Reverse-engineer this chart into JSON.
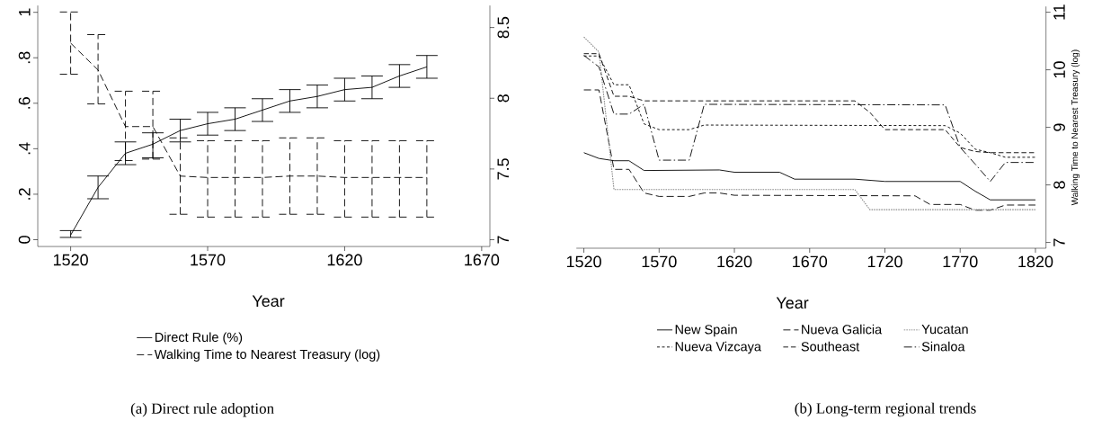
{
  "chart_data": [
    {
      "type": "line",
      "title": "(a) Direct rule adoption",
      "xlabel": "Year",
      "legend": "bottom",
      "x": [
        1520,
        1530,
        1540,
        1550,
        1560,
        1570,
        1580,
        1590,
        1600,
        1610,
        1620,
        1630,
        1640,
        1650
      ],
      "xlim": [
        1508,
        1673
      ],
      "xticks": [
        1520,
        1570,
        1620,
        1670
      ],
      "ylim": [
        -0.03,
        1.03
      ],
      "yticks": [
        0,
        {
          "value": 0.2,
          "label": ".2"
        },
        {
          "value": 0.4,
          "label": ".4"
        },
        {
          "value": 0.6,
          "label": ".6"
        },
        {
          "value": 0.8,
          "label": ".8"
        },
        1
      ],
      "y2lim": [
        6.952,
        8.656
      ],
      "y2ticks": [
        7,
        7.5,
        8,
        8.5
      ],
      "series": [
        {
          "name": "Direct Rule (%)",
          "color": "#000000",
          "line_style": "solid",
          "values": [
            0.02,
            0.23,
            0.38,
            0.42,
            0.48,
            0.51,
            0.53,
            0.57,
            0.61,
            0.63,
            0.66,
            0.67,
            0.72,
            0.76
          ],
          "errors": [
            [
              0.01,
              0.04
            ],
            [
              0.18,
              0.28
            ],
            [
              0.33,
              0.43
            ],
            [
              0.36,
              0.47
            ],
            [
              0.43,
              0.53
            ],
            [
              0.46,
              0.56
            ],
            [
              0.48,
              0.58
            ],
            [
              0.52,
              0.62
            ],
            [
              0.56,
              0.66
            ],
            [
              0.58,
              0.68
            ],
            [
              0.61,
              0.71
            ],
            [
              0.62,
              0.72
            ],
            [
              0.67,
              0.77
            ],
            [
              0.71,
              0.81
            ]
          ]
        },
        {
          "name": "Walking Time to Nearest Treasury (log)",
          "color": "#000000",
          "line_style": "dashed",
          "axis": "y2",
          "values": [
            8.39,
            8.2,
            7.8,
            7.8,
            7.45,
            7.44,
            7.44,
            7.44,
            7.45,
            7.45,
            7.44,
            7.44,
            7.44,
            7.44
          ],
          "errors": [
            [
              8.17,
              8.61
            ],
            [
              7.96,
              8.45
            ],
            [
              7.56,
              8.05
            ],
            [
              7.57,
              8.05
            ],
            [
              7.18,
              7.72
            ],
            [
              7.16,
              7.7
            ],
            [
              7.16,
              7.7
            ],
            [
              7.16,
              7.7
            ],
            [
              7.18,
              7.72
            ],
            [
              7.18,
              7.72
            ],
            [
              7.16,
              7.7
            ],
            [
              7.16,
              7.7
            ],
            [
              7.16,
              7.7
            ],
            [
              7.16,
              7.7
            ]
          ]
        }
      ]
    },
    {
      "type": "line",
      "title": "(b) Long-term regional trends",
      "xlabel": "Year",
      "ylabel": "Walking Time to Nearest Treasury (log)",
      "legend": "bottom",
      "xlim": [
        1515,
        1827
      ],
      "xticks": [
        1520,
        1570,
        1620,
        1670,
        1720,
        1770,
        1820
      ],
      "ylim": [
        6.9,
        11.1
      ],
      "yticks": [
        7,
        8,
        9,
        10,
        11
      ],
      "series": [
        {
          "name": "New Spain",
          "color": "#000000",
          "line_style": "solid",
          "x": [
            1520,
            1530,
            1540,
            1550,
            1560,
            1610,
            1620,
            1650,
            1660,
            1700,
            1720,
            1770,
            1780,
            1790,
            1820
          ],
          "values": [
            8.56,
            8.46,
            8.42,
            8.42,
            8.25,
            8.26,
            8.22,
            8.22,
            8.1,
            8.1,
            8.06,
            8.06,
            7.89,
            7.74,
            7.74
          ]
        },
        {
          "name": "Nueva Galicia",
          "color": "#000000",
          "line_style": "dashed",
          "x": [
            1520,
            1530,
            1540,
            1550,
            1560,
            1570,
            1590,
            1600,
            1610,
            1620,
            1740,
            1750,
            1770,
            1780,
            1790,
            1800,
            1820
          ],
          "values": [
            9.65,
            9.65,
            8.27,
            8.27,
            7.86,
            7.8,
            7.8,
            7.86,
            7.86,
            7.82,
            7.81,
            7.66,
            7.66,
            7.56,
            7.56,
            7.65,
            7.65
          ]
        },
        {
          "name": "Yucatan",
          "color": "#8c8c8c",
          "line_style": "dotted",
          "x": [
            1520,
            1530,
            1540,
            1700,
            1710,
            1820
          ],
          "values": [
            10.57,
            10.31,
            7.92,
            7.92,
            7.57,
            7.57
          ]
        },
        {
          "name": "Nueva Vizcaya",
          "color": "#000000",
          "line_style": "dashed",
          "x": [
            1520,
            1530,
            1540,
            1550,
            1560,
            1570,
            1590,
            1600,
            1760,
            1770,
            1780,
            1790,
            1800,
            1820
          ],
          "values": [
            10.24,
            10.24,
            9.74,
            9.74,
            9.06,
            8.96,
            8.96,
            9.04,
            9.03,
            8.9,
            8.62,
            8.56,
            8.48,
            8.48
          ]
        },
        {
          "name": "Southeast",
          "color": "#000000",
          "line_style": "dashed",
          "x": [
            1520,
            1530,
            1540,
            1550,
            1560,
            1700,
            1710,
            1720,
            1760,
            1770,
            1780,
            1790,
            1820
          ],
          "values": [
            10.28,
            10.28,
            9.54,
            9.54,
            9.46,
            9.46,
            9.26,
            8.96,
            8.96,
            8.65,
            8.58,
            8.56,
            8.56
          ]
        },
        {
          "name": "Sinaloa",
          "color": "#000000",
          "line_style": "dashed",
          "x": [
            1520,
            1530,
            1540,
            1550,
            1560,
            1570,
            1590,
            1600,
            1760,
            1770,
            1780,
            1790,
            1800,
            1820
          ],
          "values": [
            10.25,
            10.05,
            9.23,
            9.23,
            9.4,
            8.43,
            8.43,
            9.4,
            9.39,
            8.65,
            8.36,
            8.06,
            8.39,
            8.39
          ]
        }
      ]
    }
  ]
}
